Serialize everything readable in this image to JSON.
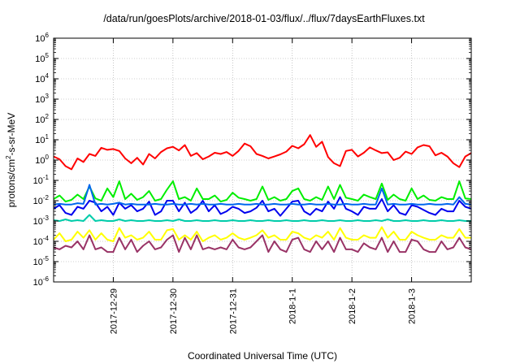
{
  "chart_data": {
    "type": "line",
    "title": "/data/run/goesPlots/archive/2018-01-03/flux/../flux/7daysEarthFluxes.txt",
    "xlabel": "Coordinated Universal Time (UTC)",
    "ylabel_parts": [
      "protons/cm",
      "2",
      "-s-sr-MeV"
    ],
    "y_scale": "log",
    "ylim": [
      1e-06,
      1000000.0
    ],
    "xlim": [
      0,
      7
    ],
    "grid": true,
    "legend": "none",
    "x_ticks": [
      {
        "pos": 1,
        "label": "2017-12-29"
      },
      {
        "pos": 2,
        "label": "2017-12-30"
      },
      {
        "pos": 3,
        "label": "2017-12-31"
      },
      {
        "pos": 4,
        "label": "2018-1-1"
      },
      {
        "pos": 5,
        "label": "2018-1-2"
      },
      {
        "pos": 6,
        "label": "2018-1-3"
      }
    ],
    "y_ticks": [
      {
        "exp": 6,
        "label": "10",
        "sup": "6"
      },
      {
        "exp": 5,
        "label": "10",
        "sup": "5"
      },
      {
        "exp": 4,
        "label": "10",
        "sup": "4"
      },
      {
        "exp": 3,
        "label": "10",
        "sup": "3"
      },
      {
        "exp": 2,
        "label": "10",
        "sup": "2"
      },
      {
        "exp": 1,
        "label": "10",
        "sup": "1"
      },
      {
        "exp": 0,
        "label": "10",
        "sup": "0"
      },
      {
        "exp": -1,
        "label": "10",
        "sup": "-1"
      },
      {
        "exp": -2,
        "label": "10",
        "sup": "-2"
      },
      {
        "exp": -3,
        "label": "10",
        "sup": "-3"
      },
      {
        "exp": -4,
        "label": "10",
        "sup": "-4"
      },
      {
        "exp": -5,
        "label": "10",
        "sup": "-5"
      },
      {
        "exp": -6,
        "label": "10",
        "sup": "-6"
      }
    ],
    "x": [
      0.0,
      0.1,
      0.2,
      0.3,
      0.4,
      0.5,
      0.6,
      0.7,
      0.8,
      0.9,
      1.0,
      1.1,
      1.2,
      1.3,
      1.4,
      1.5,
      1.6,
      1.7,
      1.8,
      1.9,
      2.0,
      2.1,
      2.2,
      2.3,
      2.4,
      2.5,
      2.6,
      2.7,
      2.8,
      2.9,
      3.0,
      3.1,
      3.2,
      3.3,
      3.4,
      3.5,
      3.6,
      3.7,
      3.8,
      3.9,
      4.0,
      4.1,
      4.2,
      4.3,
      4.4,
      4.5,
      4.6,
      4.7,
      4.8,
      4.9,
      5.0,
      5.1,
      5.2,
      5.3,
      5.4,
      5.5,
      5.6,
      5.7,
      5.8,
      5.9,
      6.0,
      6.1,
      6.2,
      6.3,
      6.4,
      6.5,
      6.6,
      6.7,
      6.8,
      6.9,
      7.0
    ],
    "series": [
      {
        "color": "#ff0000",
        "values": [
          1.5,
          1.1,
          0.5,
          0.35,
          1.2,
          0.8,
          2.0,
          1.6,
          4.0,
          3.2,
          3.5,
          2.8,
          1.2,
          0.7,
          1.3,
          0.6,
          2.0,
          1.2,
          2.5,
          3.8,
          4.5,
          3.0,
          5.5,
          1.6,
          2.2,
          1.1,
          1.5,
          2.3,
          2.0,
          2.5,
          1.6,
          2.8,
          6.5,
          4.8,
          2.0,
          1.6,
          1.2,
          1.5,
          1.9,
          2.6,
          5.0,
          3.8,
          6.0,
          17.0,
          4.5,
          8.0,
          1.4,
          0.7,
          0.5,
          2.8,
          3.2,
          1.5,
          2.3,
          4.2,
          3.0,
          2.2,
          2.4,
          1.0,
          1.3,
          2.6,
          2.0,
          4.2,
          5.5,
          4.8,
          1.7,
          2.3,
          1.5,
          0.7,
          0.45,
          1.5,
          2.2
        ]
      },
      {
        "color": "#00ee00",
        "values": [
          0.012,
          0.018,
          0.009,
          0.011,
          0.02,
          0.012,
          0.05,
          0.013,
          0.01,
          0.04,
          0.015,
          0.09,
          0.012,
          0.022,
          0.011,
          0.015,
          0.03,
          0.01,
          0.012,
          0.035,
          0.09,
          0.012,
          0.015,
          0.01,
          0.04,
          0.012,
          0.012,
          0.018,
          0.009,
          0.011,
          0.025,
          0.014,
          0.012,
          0.01,
          0.012,
          0.05,
          0.011,
          0.015,
          0.01,
          0.012,
          0.03,
          0.04,
          0.012,
          0.01,
          0.015,
          0.011,
          0.05,
          0.012,
          0.06,
          0.014,
          0.012,
          0.01,
          0.02,
          0.015,
          0.012,
          0.07,
          0.011,
          0.02,
          0.012,
          0.01,
          0.04,
          0.012,
          0.018,
          0.011,
          0.01,
          0.015,
          0.012,
          0.012,
          0.09,
          0.013,
          0.012
        ]
      },
      {
        "color": "#0000ee",
        "values": [
          0.004,
          0.006,
          0.0025,
          0.002,
          0.005,
          0.004,
          0.01,
          0.008,
          0.003,
          0.005,
          0.002,
          0.008,
          0.004,
          0.006,
          0.003,
          0.004,
          0.009,
          0.002,
          0.003,
          0.01,
          0.01,
          0.003,
          0.008,
          0.0025,
          0.004,
          0.01,
          0.003,
          0.006,
          0.0022,
          0.003,
          0.005,
          0.004,
          0.0025,
          0.003,
          0.0045,
          0.01,
          0.003,
          0.004,
          0.0018,
          0.004,
          0.009,
          0.01,
          0.003,
          0.002,
          0.004,
          0.003,
          0.009,
          0.004,
          0.015,
          0.004,
          0.003,
          0.002,
          0.005,
          0.004,
          0.004,
          0.012,
          0.003,
          0.006,
          0.0025,
          0.002,
          0.006,
          0.005,
          0.0035,
          0.0025,
          0.002,
          0.004,
          0.003,
          0.003,
          0.01,
          0.005,
          0.004
        ]
      },
      {
        "color": "#0066ee",
        "values": [
          0.0065,
          0.007,
          0.0065,
          0.0065,
          0.0075,
          0.007,
          0.06,
          0.0065,
          0.007,
          0.0065,
          0.007,
          0.008,
          0.0065,
          0.007,
          0.0065,
          0.0065,
          0.0065,
          0.007,
          0.0065,
          0.0065,
          0.007,
          0.0065,
          0.0065,
          0.007,
          0.0065,
          0.007,
          0.0065,
          0.0065,
          0.007,
          0.0065,
          0.0065,
          0.007,
          0.0065,
          0.0065,
          0.007,
          0.0065,
          0.0065,
          0.007,
          0.0065,
          0.0065,
          0.007,
          0.0065,
          0.0065,
          0.007,
          0.0065,
          0.0065,
          0.007,
          0.0065,
          0.0065,
          0.007,
          0.0065,
          0.0065,
          0.007,
          0.0065,
          0.0065,
          0.04,
          0.0065,
          0.007,
          0.0065,
          0.0065,
          0.007,
          0.0065,
          0.0065,
          0.007,
          0.0065,
          0.0065,
          0.007,
          0.0065,
          0.015,
          0.007,
          0.0065
        ]
      },
      {
        "color": "#00ccaa",
        "values": [
          0.0011,
          0.001,
          0.0012,
          0.001,
          0.0011,
          0.001,
          0.002,
          0.001,
          0.0011,
          0.001,
          0.001,
          0.0012,
          0.001,
          0.0011,
          0.001,
          0.001,
          0.0011,
          0.001,
          0.001,
          0.0011,
          0.001,
          0.0012,
          0.001,
          0.001,
          0.0011,
          0.001,
          0.001,
          0.0011,
          0.001,
          0.001,
          0.0011,
          0.001,
          0.001,
          0.0011,
          0.001,
          0.001,
          0.0011,
          0.001,
          0.001,
          0.0011,
          0.001,
          0.001,
          0.0011,
          0.001,
          0.001,
          0.0011,
          0.001,
          0.001,
          0.0011,
          0.001,
          0.001,
          0.0011,
          0.001,
          0.001,
          0.0011,
          0.001,
          0.0012,
          0.001,
          0.001,
          0.0011,
          0.001,
          0.001,
          0.0011,
          0.001,
          0.001,
          0.0011,
          0.001,
          0.001,
          0.0011,
          0.001,
          0.001
        ]
      },
      {
        "color": "#ffff00",
        "values": [
          0.00012,
          0.00025,
          0.0001,
          0.00012,
          0.0003,
          0.00015,
          0.00035,
          0.00012,
          0.00025,
          0.00012,
          0.0001,
          0.00045,
          0.00015,
          0.0002,
          0.00012,
          0.00015,
          0.0003,
          0.00012,
          0.00012,
          0.00035,
          0.0004,
          0.00012,
          0.0002,
          0.00012,
          0.0003,
          0.0001,
          0.00015,
          0.0002,
          0.00012,
          0.00015,
          0.00025,
          0.00015,
          0.00012,
          0.00015,
          0.0002,
          0.00035,
          0.00015,
          0.0002,
          0.00012,
          0.00012,
          0.0003,
          0.00025,
          0.00015,
          0.00012,
          0.0002,
          0.00015,
          0.0003,
          0.00012,
          0.00045,
          0.00015,
          0.00012,
          0.00012,
          0.0002,
          0.00015,
          0.00015,
          0.0005,
          0.00015,
          0.0003,
          0.00012,
          0.00012,
          0.0003,
          0.0002,
          0.00015,
          0.00012,
          0.00012,
          0.0002,
          0.00015,
          0.00015,
          0.0004,
          0.00015,
          0.00015
        ]
      },
      {
        "color": "#993366",
        "values": [
          5e-05,
          4e-05,
          6e-05,
          5e-05,
          0.0001,
          4e-05,
          0.0002,
          4e-05,
          5e-05,
          3e-05,
          3e-05,
          0.00015,
          4e-05,
          0.00012,
          3e-05,
          6e-05,
          0.0001,
          4e-05,
          5e-05,
          0.00012,
          0.0002,
          3e-05,
          0.00015,
          4e-05,
          0.0002,
          4e-05,
          5e-05,
          4e-05,
          5e-05,
          4e-05,
          0.00012,
          5e-05,
          4e-05,
          5e-05,
          0.0001,
          0.0002,
          3e-05,
          0.0001,
          4e-05,
          3e-05,
          0.00012,
          0.00015,
          4e-05,
          3e-05,
          0.0001,
          4e-05,
          0.0001,
          3e-05,
          0.00015,
          4e-05,
          4e-05,
          3e-05,
          8e-05,
          5e-05,
          4e-05,
          0.00015,
          3e-05,
          0.0001,
          3e-05,
          3e-05,
          0.00012,
          0.0001,
          4e-05,
          3e-05,
          3e-05,
          0.0001,
          4e-05,
          5e-05,
          0.00015,
          5e-05,
          4e-05
        ]
      }
    ]
  }
}
